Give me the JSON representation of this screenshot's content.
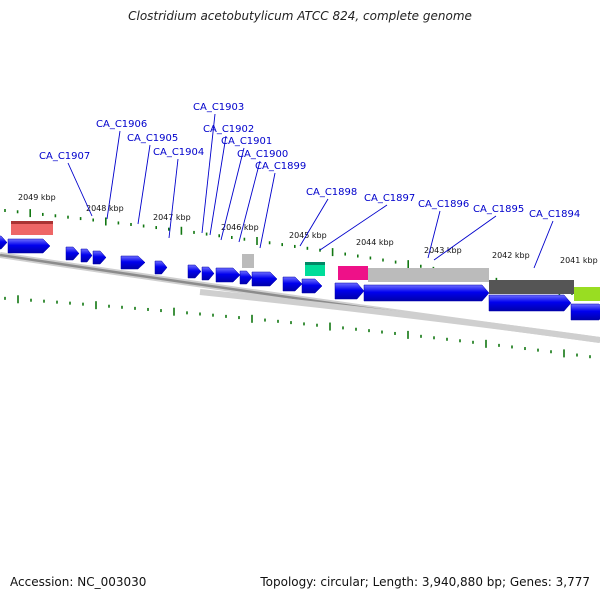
{
  "title": "Clostridium acetobutylicum ATCC 824, complete genome",
  "footer": {
    "accession": "Accession: NC_003030",
    "topology": "Topology: circular; Length: 3,940,880 bp; Genes: 3,777"
  },
  "colors": {
    "cds_forward": "#0000ee",
    "cds_reverse": "#0000ee",
    "rrna": "#ee6666",
    "trna": "#00dd99",
    "misc_pink": "#ee1188",
    "light_gray": "#bbbbbb",
    "dark_gray": "#555555",
    "lime": "#99dd22",
    "tick": "#117711",
    "label_line": "#0000cc"
  },
  "kbp_ticks": [
    "2049 kbp",
    "2048 kbp",
    "2047 kbp",
    "2046 kbp",
    "2045 kbp",
    "2044 kbp",
    "2043 kbp",
    "2042 kbp",
    "2041 kbp"
  ],
  "gene_labels": [
    "CA_C1907",
    "CA_C1906",
    "CA_C1905",
    "CA_C1904",
    "CA_C1903",
    "CA_C1902",
    "CA_C1901",
    "CA_C1900",
    "CA_C1899",
    "CA_C1898",
    "CA_C1897",
    "CA_C1896",
    "CA_C1895",
    "CA_C1894"
  ]
}
